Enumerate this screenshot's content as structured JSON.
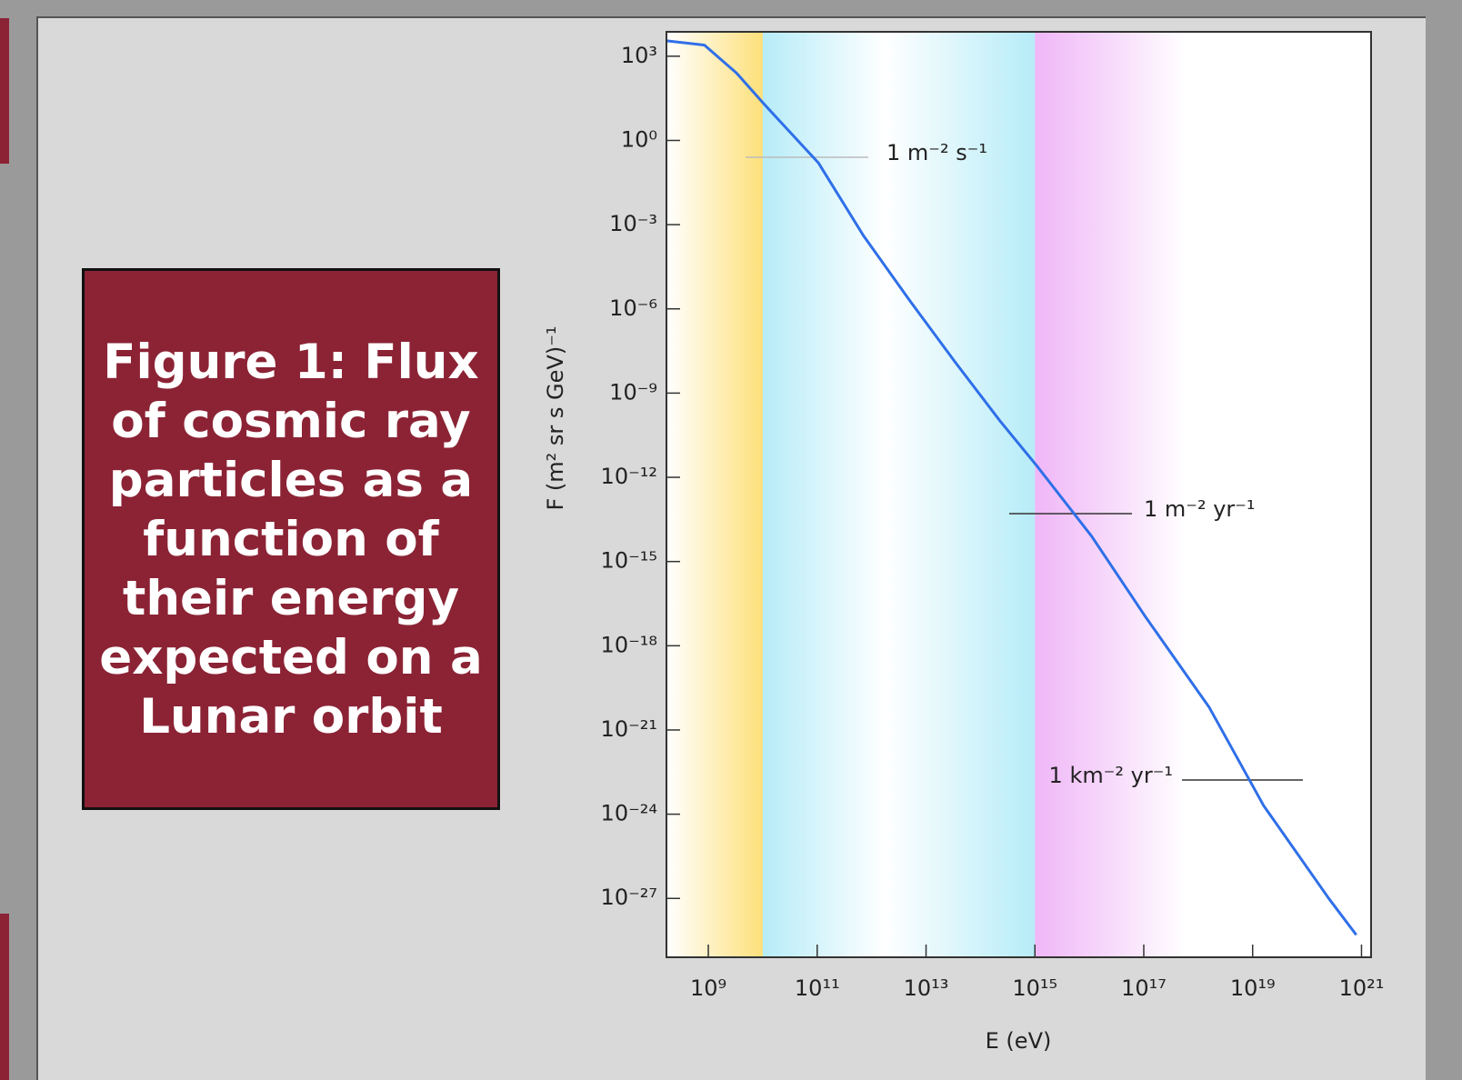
{
  "chart_data": {
    "type": "line",
    "title": "Figure 1: Flux of cosmic ray particles as a function of their energy expected on a Lunar orbit",
    "xlabel": "E (eV)",
    "ylabel": "F (m² sr s GeV)⁻¹",
    "xscale": "log",
    "yscale": "log",
    "color": "#2f6fe8",
    "x": [
      170000000.0,
      850000000.0,
      3300000000.0,
      10500000000.0,
      105000000000.0,
      710000000000.0,
      5000000000000.0,
      34000000000000.0,
      230000000000000.0,
      1100000000000000.0,
      1.1e+16,
      1.1e+17,
      1.6e+18,
      1.6e+19,
      2.5e+20,
      8e+20
    ],
    "values": [
      3550,
      2500,
      250,
      20,
      0.16,
      0.0004,
      2e-06,
      1.3e-08,
      1e-10,
      2.5e-12,
      8e-15,
      1e-17,
      6.3e-21,
      2e-24,
      1e-27,
      5e-29
    ],
    "xlim": [
      170000000.0,
      1.5e+21
    ],
    "ylim": [
      8e-30,
      7400
    ],
    "xticks": [
      {
        "value": 1000000000.0,
        "label": "10⁹"
      },
      {
        "value": 100000000000.0,
        "label": "10¹¹"
      },
      {
        "value": 10000000000000.0,
        "label": "10¹³"
      },
      {
        "value": 1000000000000000.0,
        "label": "10¹⁵"
      },
      {
        "value": 1e+17,
        "label": "10¹⁷"
      },
      {
        "value": 1e+19,
        "label": "10¹⁹"
      },
      {
        "value": 1e+21,
        "label": "10²¹"
      }
    ],
    "yticks": [
      {
        "value": 1000.0,
        "label": "10³"
      },
      {
        "value": 1,
        "label": "10⁰"
      },
      {
        "value": 0.001,
        "label": "10⁻³"
      },
      {
        "value": 1e-06,
        "label": "10⁻⁶"
      },
      {
        "value": 1e-09,
        "label": "10⁻⁹"
      },
      {
        "value": 1e-12,
        "label": "10⁻¹²"
      },
      {
        "value": 1e-15,
        "label": "10⁻¹⁵"
      },
      {
        "value": 1e-18,
        "label": "10⁻¹⁸"
      },
      {
        "value": 1e-21,
        "label": "10⁻²¹"
      },
      {
        "value": 1e-24,
        "label": "10⁻²⁴"
      },
      {
        "value": 1e-27,
        "label": "10⁻²⁷"
      }
    ],
    "bands": [
      {
        "from": 170000000.0,
        "to": 10000000000.0,
        "color": "#fde07a"
      },
      {
        "from": 10000000000.0,
        "to": 1000000000000000.0,
        "color": "#b6ecf8"
      },
      {
        "from": 1000000000000000.0,
        "to": 1.5e+21,
        "color": "#efb6f7"
      }
    ],
    "annotations": [
      "1 m⁻² s⁻¹",
      "1 m⁻² yr⁻¹",
      "1 km⁻² yr⁻¹"
    ]
  }
}
